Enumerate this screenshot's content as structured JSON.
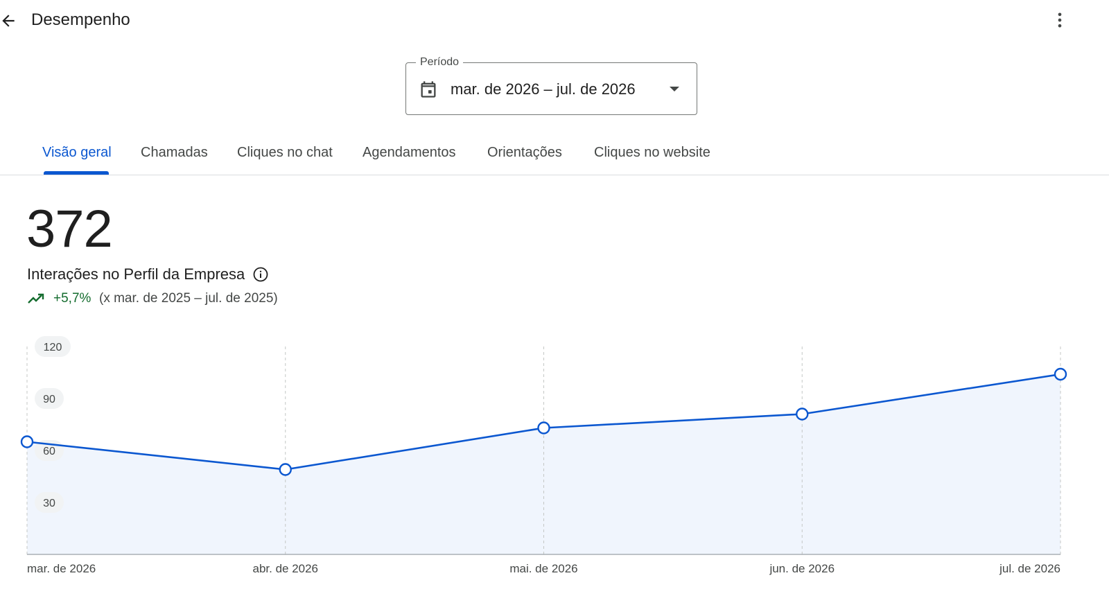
{
  "header": {
    "title": "Desempenho",
    "back_icon": "arrow-back-icon",
    "more_icon": "more-vert-icon"
  },
  "period": {
    "label": "Período",
    "value": "mar. de 2026 – jul. de 2026",
    "calendar_icon": "calendar-icon",
    "dropdown_icon": "arrow-drop-down-icon"
  },
  "tabs": [
    {
      "label": "Visão geral",
      "active": true
    },
    {
      "label": "Chamadas",
      "active": false
    },
    {
      "label": "Cliques no chat",
      "active": false
    },
    {
      "label": "Agendamentos",
      "active": false
    },
    {
      "label": "Orientações",
      "active": false
    },
    {
      "label": "Cliques no website",
      "active": false
    }
  ],
  "metric": {
    "value": "372",
    "label": "Interações no Perfil da Empresa",
    "info_icon": "info-icon",
    "trend_icon": "trending-up-icon",
    "trend_pct": "+5,7%",
    "comparison": "(x mar. de 2025 – jul. de 2025)"
  },
  "colors": {
    "accent": "#0b57d0",
    "positive": "#146c2e",
    "area_fill": "#f0f5fd"
  },
  "chart_data": {
    "type": "area",
    "categories": [
      "mar. de 2026",
      "abr. de 2026",
      "mai. de 2026",
      "jun. de 2026",
      "jul. de 2026"
    ],
    "values": [
      65,
      49,
      73,
      81,
      104
    ],
    "yticks": [
      30,
      60,
      90,
      120
    ],
    "ylim": [
      0,
      120
    ],
    "grid": "vertical-dashed"
  }
}
